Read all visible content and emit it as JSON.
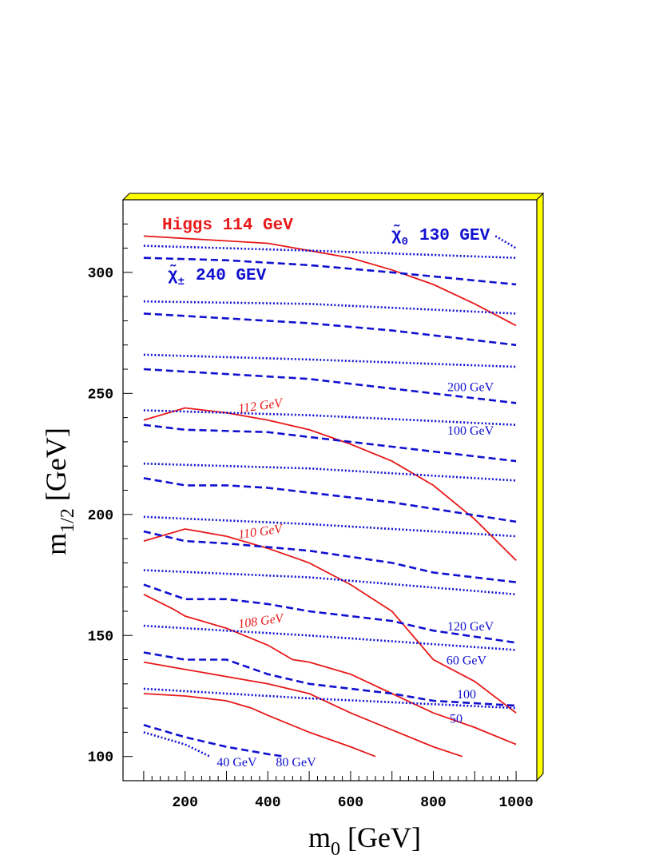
{
  "chart_data": {
    "type": "line",
    "xlabel_main": "m",
    "xlabel_sub": "0",
    "xlabel_unit": " [GeV]",
    "ylabel_main": "m",
    "ylabel_sub": "1/2",
    "ylabel_unit": " [GeV]",
    "xlim": [
      50,
      1050
    ],
    "ylim": [
      90,
      330
    ],
    "xticks": [
      200,
      400,
      600,
      800,
      1000
    ],
    "yticks": [
      100,
      150,
      200,
      250,
      300
    ],
    "colors": {
      "higgs": "#e8191a",
      "chargino": "#1010d0",
      "neutralino": "#1010d0",
      "frame_shadow": "#ffff00"
    },
    "legend": {
      "higgs": "Higgs 114 GeV",
      "neutralino_symbol": "χ̃",
      "neutralino_sub": "0",
      "neutralino_text": "130 GEV",
      "chargino_symbol": "χ̃",
      "chargino_sub": "±",
      "chargino_text": "240 GEV"
    },
    "labels": [
      {
        "text": "112 GeV",
        "color": "red",
        "x": 330,
        "y": 242
      },
      {
        "text": "110 GeV",
        "color": "red",
        "x": 330,
        "y": 190
      },
      {
        "text": "108 GeV",
        "color": "red",
        "x": 330,
        "y": 153
      },
      {
        "text": "200 GeV",
        "color": "blue",
        "x": 890,
        "y": 251
      },
      {
        "text": "100 GeV",
        "color": "blue",
        "x": 890,
        "y": 233
      },
      {
        "text": "120 GeV",
        "color": "blue",
        "x": 890,
        "y": 152
      },
      {
        "text": "60 GeV",
        "color": "blue",
        "x": 880,
        "y": 138
      },
      {
        "text": "100",
        "color": "blue",
        "x": 880,
        "y": 124
      },
      {
        "text": "50",
        "color": "blue",
        "x": 855,
        "y": 114
      },
      {
        "text": "40 GeV",
        "color": "blue",
        "x": 325,
        "y": 96
      },
      {
        "text": "80 GeV",
        "color": "blue",
        "x": 468,
        "y": 96
      }
    ],
    "series": [
      {
        "group": "higgs",
        "style": "solid",
        "points": [
          [
            100,
            315
          ],
          [
            400,
            312
          ],
          [
            600,
            306
          ],
          [
            700,
            301
          ],
          [
            800,
            295
          ],
          [
            900,
            287
          ],
          [
            1000,
            278
          ]
        ]
      },
      {
        "group": "higgs",
        "style": "solid",
        "points": [
          [
            100,
            239
          ],
          [
            200,
            244
          ],
          [
            300,
            242
          ],
          [
            400,
            239
          ],
          [
            500,
            235
          ],
          [
            600,
            229
          ],
          [
            700,
            222
          ],
          [
            800,
            212
          ],
          [
            900,
            198
          ],
          [
            1000,
            181
          ]
        ]
      },
      {
        "group": "higgs",
        "style": "solid",
        "points": [
          [
            100,
            189
          ],
          [
            200,
            194
          ],
          [
            300,
            191
          ],
          [
            400,
            186
          ],
          [
            500,
            180
          ],
          [
            600,
            171
          ],
          [
            700,
            160
          ],
          [
            800,
            140
          ],
          [
            900,
            131
          ],
          [
            1000,
            118
          ]
        ]
      },
      {
        "group": "higgs",
        "style": "solid",
        "points": [
          [
            100,
            167
          ],
          [
            170,
            161
          ],
          [
            200,
            158
          ],
          [
            300,
            153
          ],
          [
            400,
            146
          ],
          [
            460,
            140
          ],
          [
            500,
            139
          ],
          [
            600,
            134
          ],
          [
            700,
            126
          ],
          [
            800,
            118
          ],
          [
            900,
            112
          ],
          [
            1000,
            105
          ]
        ]
      },
      {
        "group": "higgs",
        "style": "solid",
        "points": [
          [
            100,
            139
          ],
          [
            200,
            136
          ],
          [
            300,
            133
          ],
          [
            400,
            130
          ],
          [
            500,
            126
          ],
          [
            600,
            118
          ],
          [
            700,
            111
          ],
          [
            800,
            104
          ],
          [
            870,
            100
          ]
        ]
      },
      {
        "group": "higgs",
        "style": "solid",
        "points": [
          [
            100,
            126
          ],
          [
            200,
            125
          ],
          [
            300,
            123
          ],
          [
            360,
            120
          ],
          [
            400,
            117
          ],
          [
            500,
            110
          ],
          [
            600,
            104
          ],
          [
            660,
            100
          ]
        ]
      },
      {
        "group": "chargino",
        "style": "dashed",
        "points": [
          [
            100,
            306
          ],
          [
            300,
            305
          ],
          [
            500,
            303
          ],
          [
            700,
            300
          ],
          [
            1000,
            295
          ]
        ]
      },
      {
        "group": "chargino",
        "style": "dashed",
        "points": [
          [
            100,
            283
          ],
          [
            300,
            281
          ],
          [
            500,
            279
          ],
          [
            700,
            276
          ],
          [
            1000,
            270
          ]
        ]
      },
      {
        "group": "chargino",
        "style": "dashed",
        "points": [
          [
            100,
            260
          ],
          [
            300,
            258
          ],
          [
            500,
            256
          ],
          [
            700,
            252
          ],
          [
            1000,
            246
          ]
        ]
      },
      {
        "group": "chargino",
        "style": "dashed",
        "points": [
          [
            100,
            237
          ],
          [
            200,
            235
          ],
          [
            400,
            234
          ],
          [
            500,
            232
          ],
          [
            700,
            228
          ],
          [
            1000,
            222
          ]
        ]
      },
      {
        "group": "chargino",
        "style": "dashed",
        "points": [
          [
            100,
            215
          ],
          [
            200,
            212
          ],
          [
            300,
            212
          ],
          [
            400,
            211
          ],
          [
            500,
            209
          ],
          [
            700,
            205
          ],
          [
            1000,
            197
          ]
        ]
      },
      {
        "group": "chargino",
        "style": "dashed",
        "points": [
          [
            100,
            193
          ],
          [
            200,
            189
          ],
          [
            300,
            188
          ],
          [
            500,
            185
          ],
          [
            700,
            180
          ],
          [
            800,
            176
          ],
          [
            1000,
            172
          ]
        ]
      },
      {
        "group": "chargino",
        "style": "dashed",
        "points": [
          [
            100,
            171
          ],
          [
            200,
            165
          ],
          [
            300,
            165
          ],
          [
            400,
            163
          ],
          [
            500,
            160
          ],
          [
            700,
            156
          ],
          [
            800,
            152
          ],
          [
            1000,
            147
          ]
        ]
      },
      {
        "group": "chargino",
        "style": "dashed",
        "points": [
          [
            100,
            143
          ],
          [
            200,
            140
          ],
          [
            300,
            140
          ],
          [
            400,
            134
          ],
          [
            500,
            130
          ],
          [
            600,
            128
          ],
          [
            700,
            126
          ],
          [
            800,
            123
          ],
          [
            1000,
            121
          ]
        ]
      },
      {
        "group": "chargino",
        "style": "dashed",
        "points": [
          [
            100,
            113
          ],
          [
            200,
            108
          ],
          [
            300,
            104
          ],
          [
            400,
            101
          ],
          [
            440,
            100
          ]
        ]
      },
      {
        "group": "neutralino",
        "style": "dotted",
        "points": [
          [
            100,
            311
          ],
          [
            500,
            309
          ],
          [
            1000,
            306
          ]
        ]
      },
      {
        "group": "neutralino",
        "style": "dotted",
        "points": [
          [
            950,
            315
          ],
          [
            1000,
            310
          ]
        ]
      },
      {
        "group": "neutralino",
        "style": "dotted",
        "points": [
          [
            100,
            288
          ],
          [
            500,
            287
          ],
          [
            1000,
            283
          ]
        ]
      },
      {
        "group": "neutralino",
        "style": "dotted",
        "points": [
          [
            100,
            266
          ],
          [
            500,
            264
          ],
          [
            1000,
            261
          ]
        ]
      },
      {
        "group": "neutralino",
        "style": "dotted",
        "points": [
          [
            100,
            243
          ],
          [
            500,
            241
          ],
          [
            1000,
            237
          ]
        ]
      },
      {
        "group": "neutralino",
        "style": "dotted",
        "points": [
          [
            100,
            221
          ],
          [
            500,
            219
          ],
          [
            1000,
            214
          ]
        ]
      },
      {
        "group": "neutralino",
        "style": "dotted",
        "points": [
          [
            100,
            199
          ],
          [
            500,
            196
          ],
          [
            1000,
            191
          ]
        ]
      },
      {
        "group": "neutralino",
        "style": "dotted",
        "points": [
          [
            100,
            177
          ],
          [
            500,
            174
          ],
          [
            1000,
            167
          ]
        ]
      },
      {
        "group": "neutralino",
        "style": "dotted",
        "points": [
          [
            100,
            154
          ],
          [
            500,
            150
          ],
          [
            1000,
            144
          ]
        ]
      },
      {
        "group": "neutralino",
        "style": "dotted",
        "points": [
          [
            100,
            128
          ],
          [
            500,
            124
          ],
          [
            1000,
            120
          ]
        ]
      },
      {
        "group": "neutralino",
        "style": "dotted",
        "points": [
          [
            100,
            110
          ],
          [
            200,
            105
          ],
          [
            260,
            100
          ]
        ]
      }
    ]
  }
}
